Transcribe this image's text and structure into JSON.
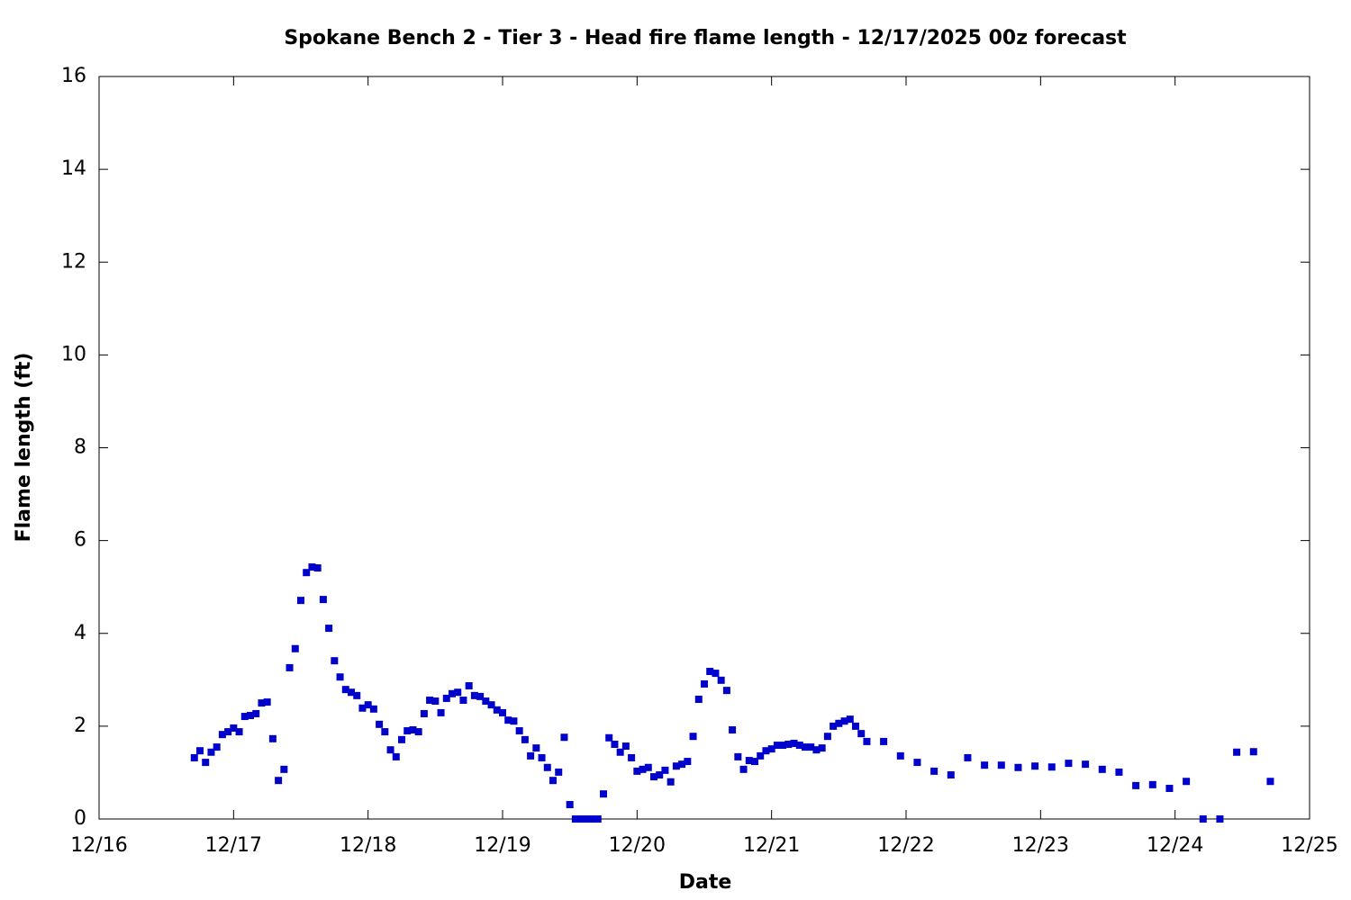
{
  "chart_data": {
    "type": "scatter",
    "title": "Spokane Bench 2 - Tier 3 - Head fire flame length - 12/17/2025 00z forecast",
    "xlabel": "Date",
    "ylabel": "Flame length (ft)",
    "color": "#0000cc",
    "xlim": [
      0,
      216
    ],
    "xticks": [
      {
        "value": 0,
        "label": "12/16"
      },
      {
        "value": 24,
        "label": "12/17"
      },
      {
        "value": 48,
        "label": "12/18"
      },
      {
        "value": 72,
        "label": "12/19"
      },
      {
        "value": 96,
        "label": "12/20"
      },
      {
        "value": 120,
        "label": "12/21"
      },
      {
        "value": 144,
        "label": "12/22"
      },
      {
        "value": 168,
        "label": "12/23"
      },
      {
        "value": 192,
        "label": "12/24"
      },
      {
        "value": 216,
        "label": "12/25"
      }
    ],
    "ylim": [
      0,
      16
    ],
    "yticks": [
      0,
      2,
      4,
      6,
      8,
      10,
      12,
      14,
      16
    ],
    "x": [
      17,
      18,
      19,
      20,
      21,
      22,
      23,
      24,
      25,
      26,
      27,
      28,
      29,
      30,
      31,
      32,
      33,
      34,
      35,
      36,
      37,
      38,
      39,
      40,
      41,
      42,
      43,
      44,
      45,
      46,
      47,
      48,
      49,
      50,
      51,
      52,
      53,
      54,
      55,
      56,
      57,
      58,
      59,
      60,
      61,
      62,
      63,
      64,
      65,
      66,
      67,
      68,
      69,
      70,
      71,
      72,
      73,
      74,
      75,
      76,
      77,
      78,
      79,
      80,
      81,
      82,
      83,
      84,
      85,
      86,
      87,
      88,
      89,
      90,
      91,
      92,
      93,
      94,
      95,
      96,
      97,
      98,
      99,
      100,
      101,
      102,
      103,
      104,
      105,
      106,
      107,
      108,
      109,
      110,
      111,
      112,
      113,
      114,
      115,
      116,
      117,
      118,
      119,
      120,
      121,
      122,
      123,
      124,
      125,
      126,
      127,
      128,
      129,
      130,
      131,
      132,
      133,
      134,
      135,
      136,
      137,
      140,
      143,
      146,
      149,
      152,
      155,
      158,
      161,
      164,
      167,
      170,
      173,
      176,
      179,
      182,
      185,
      188,
      191,
      194,
      197,
      200,
      203,
      206,
      209
    ],
    "values": [
      1.32,
      1.47,
      1.22,
      1.44,
      1.55,
      1.82,
      1.88,
      1.96,
      1.88,
      2.21,
      2.23,
      2.27,
      2.5,
      2.52,
      1.73,
      0.83,
      1.07,
      3.26,
      3.67,
      4.71,
      5.31,
      5.43,
      5.41,
      4.73,
      4.11,
      3.41,
      3.06,
      2.79,
      2.73,
      2.66,
      2.39,
      2.46,
      2.37,
      2.04,
      1.88,
      1.49,
      1.34,
      1.71,
      1.9,
      1.92,
      1.88,
      2.27,
      2.56,
      2.54,
      2.29,
      2.6,
      2.7,
      2.73,
      2.56,
      2.87,
      2.66,
      2.64,
      2.54,
      2.46,
      2.35,
      2.29,
      2.13,
      2.11,
      1.9,
      1.71,
      1.36,
      1.53,
      1.32,
      1.11,
      0.83,
      1.01,
      1.76,
      0.31,
      0,
      0,
      0,
      0,
      0,
      0.54,
      1.75,
      1.61,
      1.44,
      1.57,
      1.32,
      1.03,
      1.07,
      1.11,
      0.91,
      0.95,
      1.05,
      0.8,
      1.14,
      1.18,
      1.24,
      1.78,
      2.58,
      2.91,
      3.18,
      3.14,
      2.99,
      2.77,
      1.92,
      1.34,
      1.07,
      1.26,
      1.24,
      1.36,
      1.47,
      1.51,
      1.59,
      1.59,
      1.61,
      1.63,
      1.59,
      1.55,
      1.55,
      1.49,
      1.53,
      1.78,
      2.0,
      2.06,
      2.11,
      2.15,
      2.0,
      1.84,
      1.67,
      1.67,
      1.36,
      1.22,
      1.03,
      0.95,
      1.32,
      1.16,
      1.16,
      1.11,
      1.14,
      1.12,
      1.2,
      1.18,
      1.07,
      1.01,
      0.72,
      0.74,
      0.66,
      0.81,
      0,
      0,
      1.44,
      1.45,
      0.81
    ]
  }
}
